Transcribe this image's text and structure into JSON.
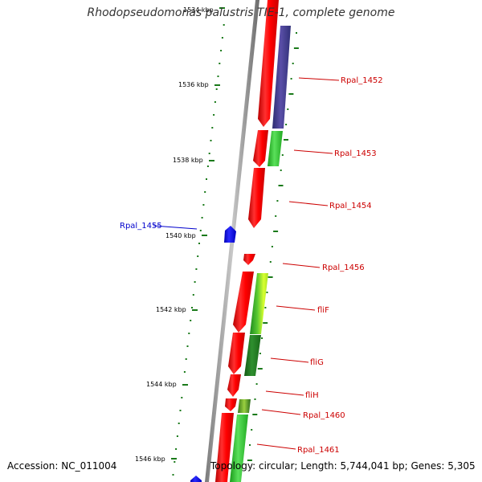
{
  "title": "Rhodopseudomonas palustris TIE-1, complete genome",
  "footer": {
    "accession": "Accession: NC_011004",
    "summary": "Topology: circular; Length: 5,744,041 bp; Genes: 5,305"
  },
  "ticks": [
    "1534 kbp",
    "1536 kbp",
    "1538 kbp",
    "1540 kbp",
    "1542 kbp",
    "1544 kbp",
    "1546 kbp"
  ],
  "genes": [
    {
      "label": "Rpal_1452",
      "color": "#cc0000"
    },
    {
      "label": "Rpal_1453",
      "color": "#cc0000"
    },
    {
      "label": "Rpal_1454",
      "color": "#cc0000"
    },
    {
      "label": "Rpal_1455",
      "color": "#0000cc"
    },
    {
      "label": "Rpal_1456",
      "color": "#cc0000"
    },
    {
      "label": "fliF",
      "color": "#cc0000"
    },
    {
      "label": "fliG",
      "color": "#cc0000"
    },
    {
      "label": "fliH",
      "color": "#cc0000"
    },
    {
      "label": "Rpal_1460",
      "color": "#cc0000"
    },
    {
      "label": "Rpal_1461",
      "color": "#cc0000"
    }
  ]
}
